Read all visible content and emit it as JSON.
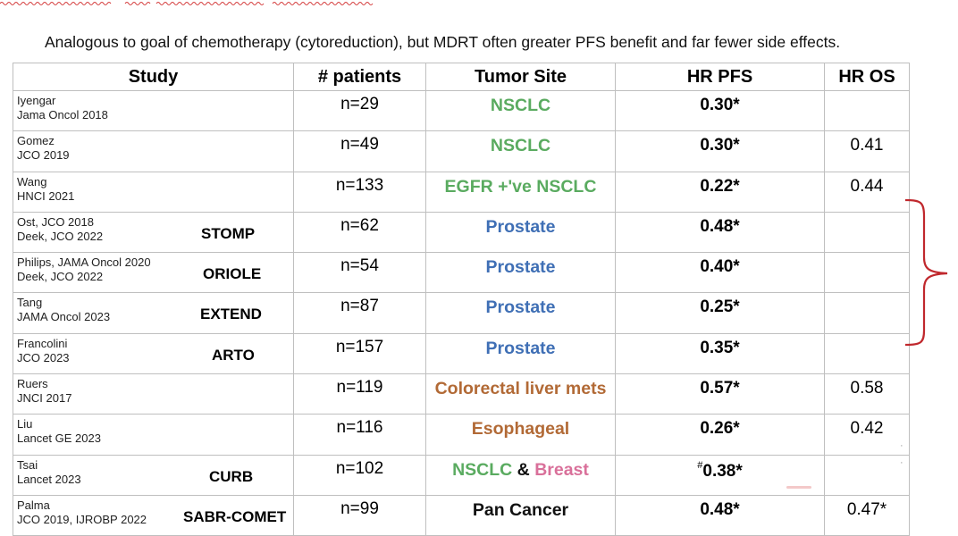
{
  "caption": "Analogous to goal of chemotherapy (cytoreduction), but MDRT often greater PFS benefit and far fewer side effects.",
  "colors": {
    "green": "#5aab60",
    "blue": "#3f6fb5",
    "brown": "#b26a36",
    "pink": "#d9709a",
    "black": "#111111",
    "brace_red": "#c0282d"
  },
  "table": {
    "headers": {
      "study": "Study",
      "patients": "# patients",
      "site": "Tumor Site",
      "hr_pfs": "HR PFS",
      "hr_os": "HR OS"
    },
    "rows": [
      {
        "ref1": "Iyengar",
        "ref2": "Jama Oncol 2018",
        "trial": "",
        "patients": "n=29",
        "site": "NSCLC",
        "site_color": "green",
        "hr_pfs": "0.30*",
        "hr_pfs_note": "",
        "hr_os": ""
      },
      {
        "ref1": "Gomez",
        "ref2": "JCO 2019",
        "trial": "",
        "patients": "n=49",
        "site": "NSCLC",
        "site_color": "green",
        "hr_pfs": "0.30*",
        "hr_pfs_note": "",
        "hr_os": "0.41"
      },
      {
        "ref1": "Wang",
        "ref2": "HNCI 2021",
        "trial": "",
        "patients": "n=133",
        "site": "EGFR +'ve NSCLC",
        "site_color": "green",
        "hr_pfs": "0.22*",
        "hr_pfs_note": "",
        "hr_os": "0.44"
      },
      {
        "ref1": "Ost, JCO 2018",
        "ref2": "Deek, JCO 2022",
        "trial": "STOMP",
        "patients": "n=62",
        "site": "Prostate",
        "site_color": "blue",
        "hr_pfs": "0.48*",
        "hr_pfs_note": "",
        "hr_os": ""
      },
      {
        "ref1": "Philips, JAMA Oncol 2020",
        "ref2": "Deek, JCO 2022",
        "trial": "ORIOLE",
        "patients": "n=54",
        "site": "Prostate",
        "site_color": "blue",
        "hr_pfs": "0.40*",
        "hr_pfs_note": "",
        "hr_os": ""
      },
      {
        "ref1": "Tang",
        "ref2": "JAMA Oncol 2023",
        "trial": "EXTEND",
        "patients": "n=87",
        "site": "Prostate",
        "site_color": "blue",
        "hr_pfs": "0.25*",
        "hr_pfs_note": "",
        "hr_os": ""
      },
      {
        "ref1": "Francolini",
        "ref2": "JCO 2023",
        "trial": "ARTO",
        "patients": "n=157",
        "site": "Prostate",
        "site_color": "blue",
        "hr_pfs": "0.35*",
        "hr_pfs_note": "",
        "hr_os": ""
      },
      {
        "ref1": "Ruers",
        "ref2": "JNCI 2017",
        "trial": "",
        "patients": "n=119",
        "site": "Colorectal liver mets",
        "site_color": "brown",
        "hr_pfs": "0.57*",
        "hr_pfs_note": "",
        "hr_os": "0.58"
      },
      {
        "ref1": "Liu",
        "ref2": "Lancet GE 2023",
        "trial": "",
        "patients": "n=116",
        "site": "Esophageal",
        "site_color": "brown",
        "hr_pfs": "0.26*",
        "hr_pfs_note": "",
        "hr_os": "0.42"
      },
      {
        "ref1": "Tsai",
        "ref2": "Lancet 2023",
        "trial": "CURB",
        "patients": "n=102",
        "site_parts": [
          {
            "text": "NSCLC",
            "color": "green"
          },
          {
            "text": " & ",
            "color": "black"
          },
          {
            "text": "Breast",
            "color": "pink"
          }
        ],
        "hr_pfs": "0.38*",
        "hr_pfs_note": "#",
        "hr_os": ""
      },
      {
        "ref1": "Palma",
        "ref2": "JCO 2019, IJROBP 2022",
        "trial": "SABR-COMET",
        "patients": "n=99",
        "site": "Pan Cancer",
        "site_color": "black",
        "hr_pfs": "0.48*",
        "hr_pfs_note": "",
        "hr_os": "0.47*"
      }
    ]
  }
}
